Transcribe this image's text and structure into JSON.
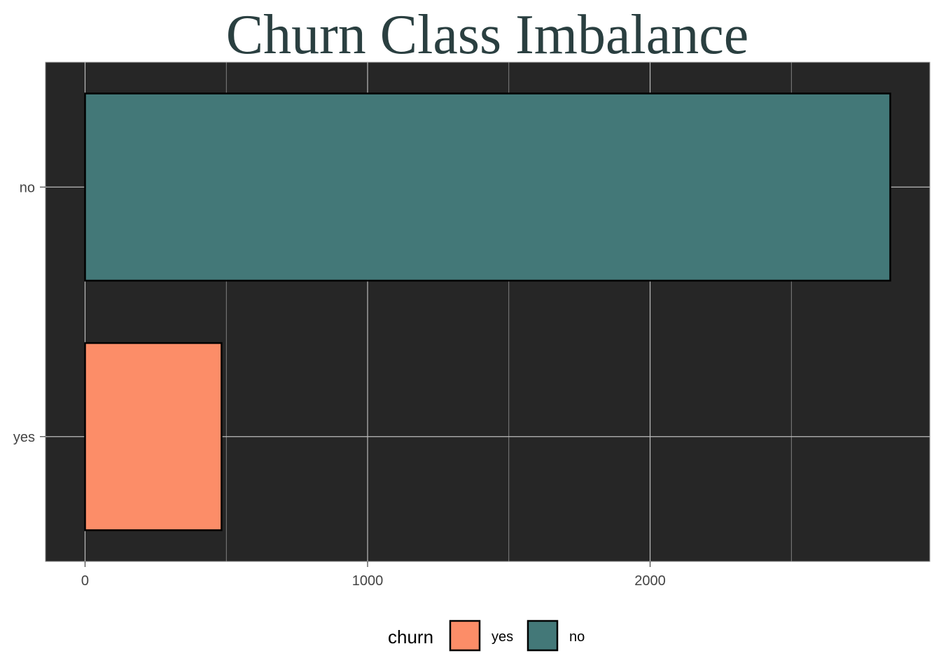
{
  "chart_data": {
    "type": "bar",
    "orientation": "horizontal",
    "title": "Churn Class Imbalance",
    "xlabel": "",
    "ylabel": "",
    "categories": [
      "no",
      "yes"
    ],
    "values": [
      2850,
      483
    ],
    "xlim": [
      -140,
      2990
    ],
    "x_ticks": [
      0,
      1000,
      2000
    ],
    "x_tick_labels": [
      "0",
      "1000",
      "2000"
    ],
    "grid": true,
    "legend": {
      "title": "churn",
      "position": "bottom",
      "entries": [
        {
          "label": "yes",
          "color": "#fc8d68"
        },
        {
          "label": "no",
          "color": "#437878"
        }
      ]
    },
    "colors": {
      "no": "#437878",
      "yes": "#fc8d68",
      "panel_background": "#262626",
      "grid": "#bcbcbc",
      "bar_outline": "#000000",
      "title": "#2a3f40"
    }
  }
}
